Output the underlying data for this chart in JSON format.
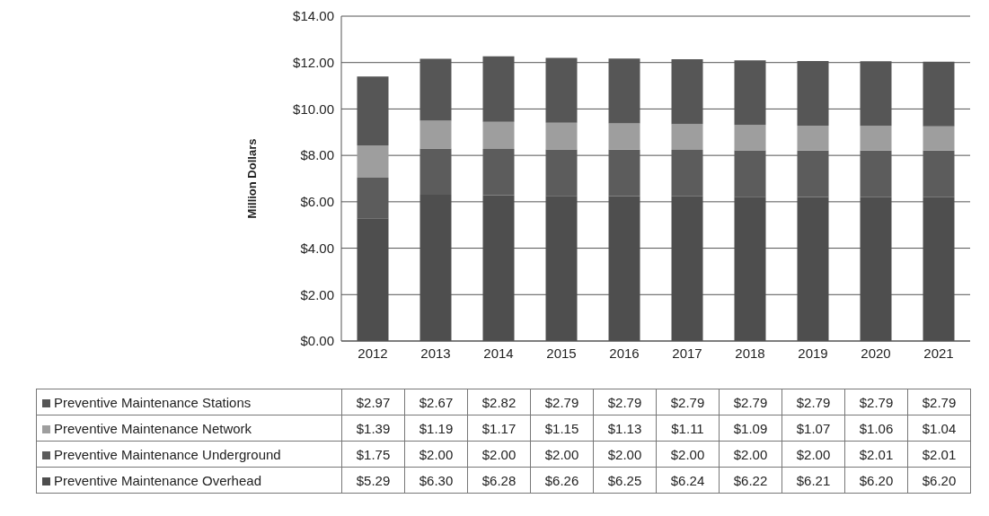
{
  "chart_data": {
    "type": "bar",
    "stacked": true,
    "ylabel": "Million Dollars",
    "categories": [
      "2012",
      "2013",
      "2014",
      "2015",
      "2016",
      "2017",
      "2018",
      "2019",
      "2020",
      "2021"
    ],
    "series": [
      {
        "name": "Preventive Maintenance Overhead",
        "color": "#4e4e4e",
        "values": [
          5.29,
          6.3,
          6.28,
          6.26,
          6.25,
          6.24,
          6.22,
          6.21,
          6.2,
          6.2
        ],
        "value_labels": [
          "$5.29",
          "$6.30",
          "$6.28",
          "$6.26",
          "$6.25",
          "$6.24",
          "$6.22",
          "$6.21",
          "$6.20",
          "$6.20"
        ]
      },
      {
        "name": "Preventive Maintenance Underground",
        "color": "#5c5c5c",
        "values": [
          1.75,
          2.0,
          2.0,
          2.0,
          2.0,
          2.0,
          2.0,
          2.0,
          2.01,
          2.01
        ],
        "value_labels": [
          "$1.75",
          "$2.00",
          "$2.00",
          "$2.00",
          "$2.00",
          "$2.00",
          "$2.00",
          "$2.00",
          "$2.01",
          "$2.01"
        ]
      },
      {
        "name": "Preventive Maintenance Network",
        "color": "#9e9e9e",
        "values": [
          1.39,
          1.19,
          1.17,
          1.15,
          1.13,
          1.11,
          1.09,
          1.07,
          1.06,
          1.04
        ],
        "value_labels": [
          "$1.39",
          "$1.19",
          "$1.17",
          "$1.15",
          "$1.13",
          "$1.11",
          "$1.09",
          "$1.07",
          "$1.06",
          "$1.04"
        ]
      },
      {
        "name": "Preventive Maintenance Stations",
        "color": "#565656",
        "values": [
          2.97,
          2.67,
          2.82,
          2.79,
          2.79,
          2.79,
          2.79,
          2.79,
          2.79,
          2.79
        ],
        "value_labels": [
          "$2.97",
          "$2.67",
          "$2.82",
          "$2.79",
          "$2.79",
          "$2.79",
          "$2.79",
          "$2.79",
          "$2.79",
          "$2.79"
        ]
      }
    ],
    "ylim": [
      0,
      14
    ],
    "yticks": [
      {
        "value": 0,
        "label": "$0.00"
      },
      {
        "value": 2,
        "label": "$2.00"
      },
      {
        "value": 4,
        "label": "$4.00"
      },
      {
        "value": 6,
        "label": "$6.00"
      },
      {
        "value": 8,
        "label": "$8.00"
      },
      {
        "value": 10,
        "label": "$10.00"
      },
      {
        "value": 12,
        "label": "$12.00"
      },
      {
        "value": 14,
        "label": "$14.00"
      }
    ],
    "grid": "y",
    "legend": "bottom"
  }
}
